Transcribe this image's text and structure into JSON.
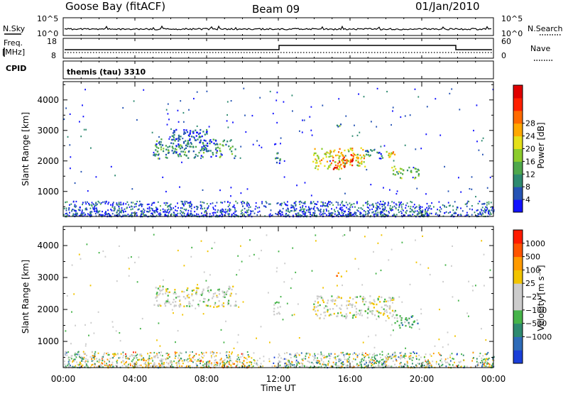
{
  "header": {
    "station": "Goose Bay (fitACF)",
    "beam": "Beam 09",
    "date": "01/Jan/2010"
  },
  "top_panels": {
    "nsky_label": "N.Sky",
    "nsearch_label": "N.Search",
    "noise_ticks": [
      "10^5",
      "10^0"
    ],
    "noise_ticks_right": [
      "10^5",
      "10^0"
    ],
    "freq_label_1": "Freq.",
    "freq_label_2": "[MHz]",
    "freq_ticks": [
      "18",
      "8"
    ],
    "nave_label": "Nave",
    "nave_ticks": [
      "60",
      "0"
    ],
    "cpid_label": "CPID",
    "cpid_value": "themis (tau) 3310"
  },
  "chart_data": [
    {
      "type": "heatmap",
      "name": "power",
      "xlabel": "Time UT",
      "ylabel": "Slant Range [km]",
      "x_ticks": [
        "00:00",
        "04:00",
        "08:00",
        "12:00",
        "16:00",
        "20:00",
        "00:00"
      ],
      "xlim_hours": [
        0,
        24
      ],
      "y_ticks": [
        1000,
        2000,
        3000,
        4000
      ],
      "ylim_km": [
        180,
        4600
      ],
      "colorbar_label": "Power [dB]",
      "colorbar_ticks": [
        "4",
        "8",
        "12",
        "16",
        "20",
        "24",
        "28"
      ],
      "colorbar_colors": [
        "#1212ff",
        "#2553b5",
        "#2e8a70",
        "#4fa84c",
        "#8ccc2c",
        "#e5e01a",
        "#ffa800",
        "#ff6a00",
        "#ff2000",
        "#e00000"
      ],
      "echo_regions": [
        {
          "t0": 5.0,
          "t1": 9.6,
          "r0": 2100,
          "r1": 2750,
          "level": 0.25
        },
        {
          "t0": 6.0,
          "t1": 8.0,
          "r0": 2400,
          "r1": 3050,
          "level": 0.15
        },
        {
          "t0": 11.7,
          "t1": 12.1,
          "r0": 1850,
          "r1": 2350,
          "level": 0.2
        },
        {
          "t0": 13.9,
          "t1": 16.8,
          "r0": 1750,
          "r1": 2450,
          "level": 0.55
        },
        {
          "t0": 15.0,
          "t1": 16.2,
          "r0": 1750,
          "r1": 2350,
          "level": 0.8
        },
        {
          "t0": 16.8,
          "t1": 17.8,
          "r0": 2100,
          "r1": 2450,
          "level": 0.25
        },
        {
          "t0": 17.8,
          "t1": 18.6,
          "r0": 2150,
          "r1": 2400,
          "level": 0.6
        },
        {
          "t0": 18.3,
          "t1": 19.8,
          "r0": 1450,
          "r1": 1850,
          "level": 0.4
        },
        {
          "t0": 15.2,
          "t1": 15.6,
          "r0": 3050,
          "r1": 3250,
          "level": 0.3
        }
      ],
      "ground_scatter_band_km": [
        200,
        700
      ]
    },
    {
      "type": "heatmap",
      "name": "velocity",
      "xlabel": "Time UT",
      "ylabel": "Slant Range [km]",
      "x_ticks": [
        "00:00",
        "04:00",
        "08:00",
        "12:00",
        "16:00",
        "20:00",
        "00:00"
      ],
      "xlim_hours": [
        0,
        24
      ],
      "y_ticks": [
        1000,
        2000,
        3000,
        4000
      ],
      "ylim_km": [
        180,
        4600
      ],
      "colorbar_label": "Velocity [m s⁻¹]",
      "colorbar_ticks": [
        "1000",
        "500",
        "100",
        "25",
        "−25",
        "−100",
        "−500",
        "−1000"
      ],
      "colorbar_colors": [
        "#1a3fd8",
        "#2e6bb8",
        "#2e8a70",
        "#46b44a",
        "#cccccc",
        "#cccccc",
        "#f2c400",
        "#ff9a00",
        "#ff5400",
        "#ff1a00"
      ],
      "echo_regions": [
        {
          "t0": 5.0,
          "t1": 9.6,
          "r0": 2100,
          "r1": 2750,
          "level": 0.5
        },
        {
          "t0": 11.7,
          "t1": 12.1,
          "r0": 1850,
          "r1": 2350,
          "level": 0.5
        },
        {
          "t0": 13.9,
          "t1": 18.6,
          "r0": 1750,
          "r1": 2450,
          "level": 0.5
        },
        {
          "t0": 18.4,
          "t1": 19.8,
          "r0": 1450,
          "r1": 1850,
          "level": 0.32
        },
        {
          "t0": 15.2,
          "t1": 15.6,
          "r0": 3050,
          "r1": 3250,
          "level": 0.7
        }
      ],
      "ground_scatter_band_km": [
        200,
        700
      ]
    }
  ]
}
